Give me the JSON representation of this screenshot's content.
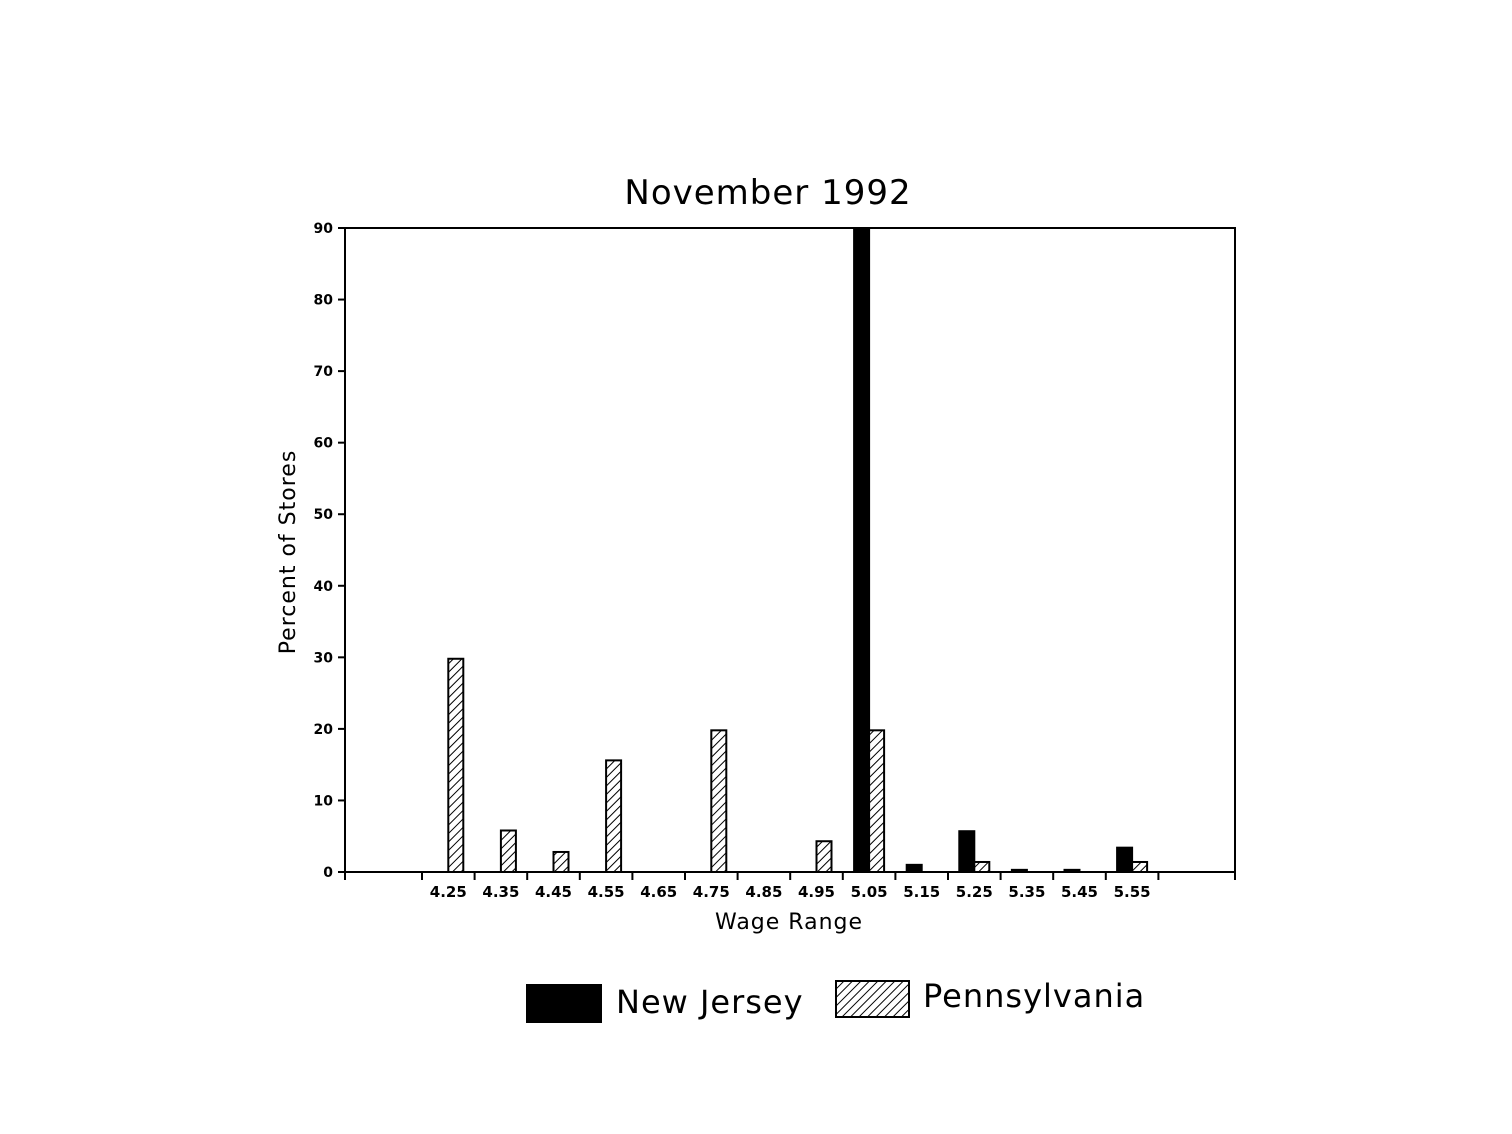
{
  "chart_data": {
    "type": "bar",
    "title": "November 1992",
    "xlabel": "Wage Range",
    "ylabel": "Percent of Stores",
    "ylim": [
      0,
      90
    ],
    "yticks": [
      0,
      10,
      20,
      30,
      40,
      50,
      60,
      70,
      80,
      90
    ],
    "categories": [
      "4.25",
      "4.35",
      "4.45",
      "4.55",
      "4.65",
      "4.75",
      "4.85",
      "4.95",
      "5.05",
      "5.15",
      "5.25",
      "5.35",
      "5.45",
      "5.55"
    ],
    "series": [
      {
        "name": "New Jersey",
        "fill": "solid",
        "color": "#000000",
        "values": [
          0,
          0,
          0,
          0,
          0,
          0,
          0,
          0,
          90,
          1,
          5.7,
          0.3,
          0.3,
          3.4
        ]
      },
      {
        "name": "Pennsylvania",
        "fill": "hatched",
        "color": "#000000",
        "values": [
          29.8,
          5.8,
          2.8,
          15.6,
          0,
          19.8,
          0,
          4.3,
          19.8,
          0,
          1.4,
          0,
          0,
          1.4
        ]
      }
    ],
    "grid": false,
    "legend_position": "bottom-center"
  }
}
